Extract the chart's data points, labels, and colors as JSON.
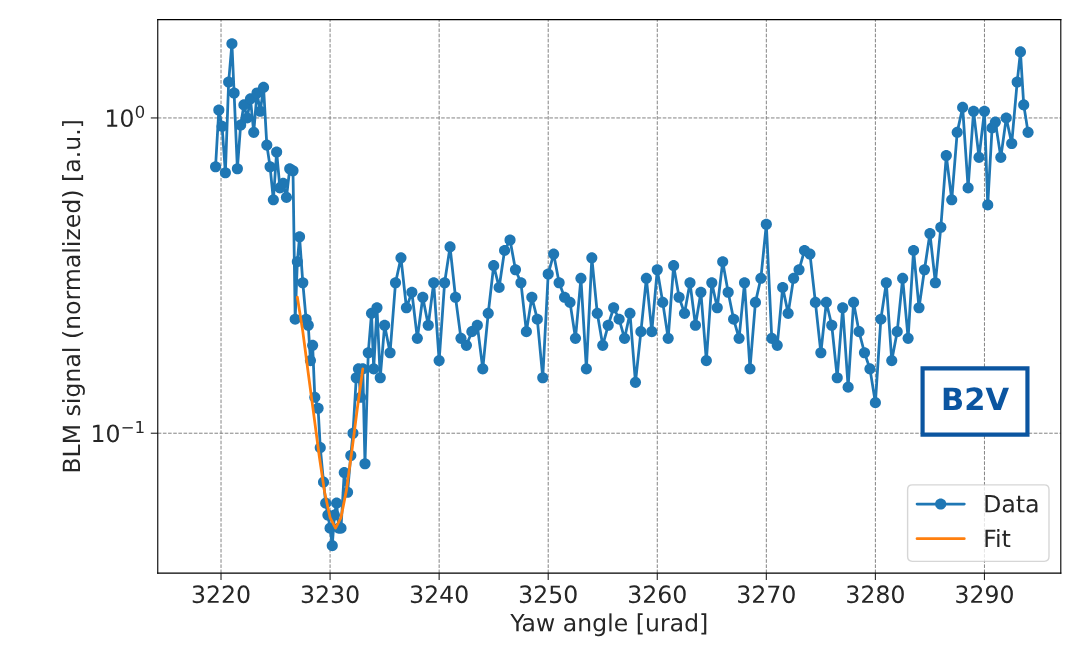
{
  "chart_data": {
    "type": "line",
    "xlabel": "Yaw angle [urad]",
    "ylabel": "BLM signal (normalized) [a.u.]",
    "log": "y",
    "xlim": [
      3214.2,
      3297
    ],
    "xticks": [
      3220,
      3230,
      3240,
      3250,
      3260,
      3270,
      3280,
      3290
    ],
    "ylim": [
      0.036,
      2.05
    ],
    "yticks": [
      {
        "value": 0.1,
        "label": "10$^{−1}$"
      },
      {
        "value": 1,
        "label": "10$^{0}$"
      }
    ],
    "grid": true,
    "legend": "bottom right",
    "annotations": [
      "B2V"
    ],
    "series": [
      {
        "name": "Data",
        "color": "#1f77b4",
        "marker": "circle",
        "line_style": "solid",
        "x": [
          3219.5,
          3219.8,
          3220.1,
          3220.4,
          3220.7,
          3221.0,
          3221.2,
          3221.5,
          3221.8,
          3222.1,
          3222.4,
          3222.7,
          3223.0,
          3223.3,
          3223.6,
          3223.9,
          3224.2,
          3224.5,
          3224.8,
          3225.1,
          3225.4,
          3225.7,
          3226.0,
          3226.3,
          3226.6,
          3226.8,
          3227.0,
          3227.2,
          3227.5,
          3227.8,
          3228.0,
          3228.2,
          3228.4,
          3228.6,
          3228.9,
          3229.1,
          3229.4,
          3229.6,
          3229.8,
          3230.0,
          3230.2,
          3230.4,
          3230.6,
          3230.8,
          3231.0,
          3231.3,
          3231.6,
          3231.9,
          3232.1,
          3232.4,
          3232.6,
          3232.8,
          3233.0,
          3233.2,
          3233.5,
          3233.8,
          3234.0,
          3234.3,
          3234.6,
          3235.0,
          3235.5,
          3236.0,
          3236.5,
          3237.0,
          3237.5,
          3238.0,
          3238.5,
          3239.0,
          3239.5,
          3240.0,
          3240.5,
          3241.0,
          3241.5,
          3242.0,
          3242.5,
          3243.0,
          3243.5,
          3244.0,
          3244.5,
          3245.0,
          3245.5,
          3246.0,
          3246.5,
          3247.0,
          3247.5,
          3248.0,
          3248.5,
          3249.0,
          3249.5,
          3250.0,
          3250.5,
          3251.0,
          3251.5,
          3252.0,
          3252.5,
          3253.0,
          3253.5,
          3254.0,
          3254.5,
          3255.0,
          3255.5,
          3256.0,
          3256.5,
          3257.0,
          3257.5,
          3258.0,
          3258.5,
          3259.0,
          3259.5,
          3260.0,
          3260.5,
          3261.0,
          3261.5,
          3262.0,
          3262.5,
          3263.0,
          3263.5,
          3264.0,
          3264.5,
          3265.0,
          3265.5,
          3266.0,
          3266.5,
          3267.0,
          3267.5,
          3268.0,
          3268.5,
          3269.0,
          3269.5,
          3270.0,
          3270.5,
          3271.0,
          3271.5,
          3272.0,
          3272.5,
          3273.0,
          3273.5,
          3274.0,
          3274.5,
          3275.0,
          3275.5,
          3276.0,
          3276.5,
          3277.0,
          3277.5,
          3278.0,
          3278.5,
          3279.0,
          3279.5,
          3280.0,
          3280.5,
          3281.0,
          3281.5,
          3282.0,
          3282.5,
          3283.0,
          3283.5,
          3284.0,
          3284.5,
          3285.0,
          3285.5,
          3286.0,
          3286.5,
          3287.0,
          3287.5,
          3288.0,
          3288.5,
          3289.0,
          3289.5,
          3290.0,
          3290.3,
          3290.7,
          3291.0,
          3291.5,
          3292.0,
          3292.5,
          3293.0,
          3293.3,
          3293.6,
          3294.0
        ],
        "values": [
          0.7,
          1.06,
          0.94,
          0.67,
          1.3,
          1.72,
          1.2,
          0.69,
          0.95,
          1.1,
          1.0,
          1.15,
          0.9,
          1.2,
          1.05,
          1.25,
          0.82,
          0.7,
          0.55,
          0.78,
          0.6,
          0.62,
          0.56,
          0.69,
          0.68,
          0.23,
          0.35,
          0.42,
          0.3,
          0.23,
          0.22,
          0.17,
          0.19,
          0.13,
          0.12,
          0.09,
          0.07,
          0.06,
          0.055,
          0.05,
          0.044,
          0.055,
          0.06,
          0.05,
          0.05,
          0.075,
          0.065,
          0.085,
          0.1,
          0.15,
          0.16,
          0.13,
          0.16,
          0.08,
          0.18,
          0.24,
          0.16,
          0.25,
          0.15,
          0.22,
          0.18,
          0.3,
          0.36,
          0.25,
          0.28,
          0.2,
          0.27,
          0.22,
          0.3,
          0.17,
          0.3,
          0.39,
          0.27,
          0.2,
          0.19,
          0.21,
          0.22,
          0.16,
          0.24,
          0.34,
          0.29,
          0.38,
          0.41,
          0.33,
          0.3,
          0.21,
          0.27,
          0.23,
          0.15,
          0.32,
          0.37,
          0.3,
          0.27,
          0.26,
          0.2,
          0.31,
          0.16,
          0.36,
          0.24,
          0.19,
          0.22,
          0.25,
          0.23,
          0.2,
          0.24,
          0.145,
          0.21,
          0.31,
          0.21,
          0.33,
          0.26,
          0.2,
          0.34,
          0.27,
          0.24,
          0.3,
          0.22,
          0.28,
          0.17,
          0.3,
          0.25,
          0.35,
          0.28,
          0.23,
          0.2,
          0.3,
          0.16,
          0.26,
          0.31,
          0.46,
          0.2,
          0.19,
          0.29,
          0.24,
          0.31,
          0.33,
          0.38,
          0.37,
          0.26,
          0.18,
          0.26,
          0.22,
          0.15,
          0.25,
          0.14,
          0.26,
          0.21,
          0.18,
          0.16,
          0.125,
          0.23,
          0.3,
          0.17,
          0.21,
          0.31,
          0.2,
          0.38,
          0.25,
          0.33,
          0.43,
          0.3,
          0.45,
          0.76,
          0.55,
          0.9,
          1.08,
          0.6,
          1.05,
          0.75,
          1.05,
          0.53,
          0.93,
          0.97,
          0.75,
          1.0,
          0.83,
          1.3,
          1.62,
          1.1,
          0.9
        ]
      },
      {
        "name": "Fit",
        "color": "#ff7f0e",
        "marker": "none",
        "line_style": "solid",
        "x": [
          3227.0,
          3227.5,
          3228.0,
          3228.5,
          3229.0,
          3229.5,
          3230.0,
          3230.5,
          3231.0,
          3231.5,
          3232.0,
          3232.5,
          3233.0
        ],
        "values": [
          0.27,
          0.21,
          0.155,
          0.115,
          0.085,
          0.065,
          0.054,
          0.05,
          0.054,
          0.066,
          0.088,
          0.12,
          0.16
        ]
      }
    ]
  }
}
